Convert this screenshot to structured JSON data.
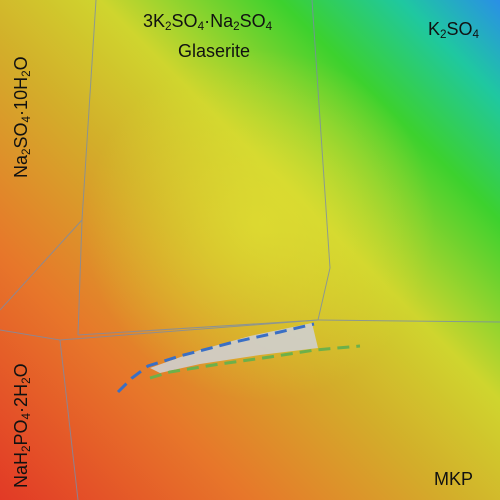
{
  "diagram": {
    "regions": [
      {
        "id": "na2so4-10h2o",
        "formula": [
          "Na",
          "2",
          "SO",
          "4",
          "·10H",
          "2",
          "O"
        ]
      },
      {
        "id": "glaserite",
        "formula": [
          "3K",
          "2",
          "SO",
          "4",
          "·Na",
          "2",
          "SO",
          "4"
        ],
        "name": "Glaserite"
      },
      {
        "id": "k2so4",
        "formula": [
          "K",
          "2",
          "SO",
          "4"
        ]
      },
      {
        "id": "nah2po4-2h2o",
        "formula": [
          "NaH",
          "2",
          "PO",
          "4",
          "·2H",
          "2",
          "O"
        ]
      },
      {
        "id": "mkp",
        "name": "MKP"
      }
    ],
    "colors": {
      "red": "#e8442a",
      "orange": "#e8902a",
      "yellow": "#d4d62c",
      "green": "#2ed12c",
      "blue": "#2a9fe0",
      "boundary": "#7b8ca8",
      "dashed_blue": "#3a6fc4",
      "dashed_green": "#6db04a",
      "shaded": "#cfcfcf"
    }
  }
}
